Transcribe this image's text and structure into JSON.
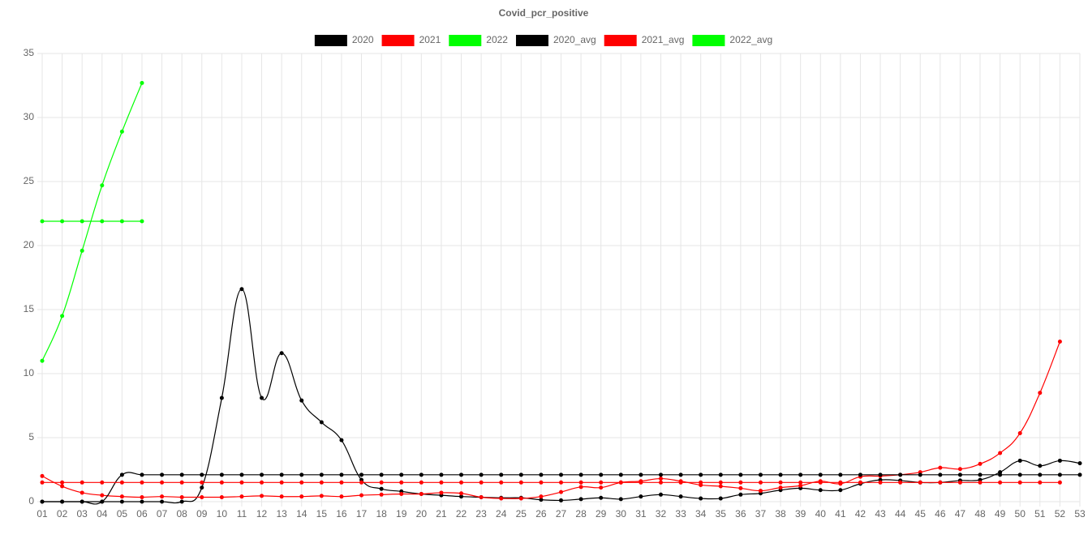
{
  "chart_data": {
    "type": "line",
    "title": "Covid_pcr_positive",
    "categories": [
      "01",
      "02",
      "03",
      "04",
      "05",
      "06",
      "07",
      "08",
      "09",
      "10",
      "11",
      "12",
      "13",
      "14",
      "15",
      "16",
      "17",
      "18",
      "19",
      "20",
      "21",
      "22",
      "23",
      "24",
      "25",
      "26",
      "27",
      "28",
      "29",
      "30",
      "31",
      "32",
      "33",
      "34",
      "35",
      "36",
      "37",
      "38",
      "39",
      "40",
      "41",
      "42",
      "43",
      "44",
      "45",
      "46",
      "47",
      "48",
      "49",
      "50",
      "51",
      "52",
      "53"
    ],
    "series": [
      {
        "name": "2020",
        "color": "#000000",
        "values": [
          0,
          0,
          0,
          0,
          0,
          0,
          0,
          0,
          1.1,
          8.1,
          16.6,
          8.1,
          11.6,
          7.9,
          6.2,
          4.8,
          1.7,
          1.0,
          0.8,
          0.6,
          0.5,
          0.4,
          0.35,
          0.3,
          0.3,
          0.15,
          0.1,
          0.2,
          0.3,
          0.2,
          0.4,
          0.55,
          0.4,
          0.25,
          0.25,
          0.55,
          0.65,
          0.9,
          1.05,
          0.9,
          0.9,
          1.4,
          1.7,
          1.65,
          1.5,
          1.5,
          1.65,
          1.7,
          2.3,
          3.2,
          2.8,
          3.2,
          3.0
        ]
      },
      {
        "name": "2021",
        "color": "#ff0000",
        "values": [
          2.0,
          1.2,
          0.7,
          0.5,
          0.4,
          0.35,
          0.4,
          0.35,
          0.35,
          0.35,
          0.4,
          0.45,
          0.4,
          0.4,
          0.45,
          0.4,
          0.5,
          0.55,
          0.6,
          0.6,
          0.7,
          0.65,
          0.35,
          0.25,
          0.25,
          0.4,
          0.75,
          1.15,
          1.1,
          1.5,
          1.6,
          1.8,
          1.6,
          1.3,
          1.2,
          1.05,
          0.85,
          1.1,
          1.25,
          1.6,
          1.4,
          1.95,
          2.0,
          2.1,
          2.3,
          2.65,
          2.55,
          2.95,
          3.8,
          5.35,
          8.5,
          12.5,
          null
        ]
      },
      {
        "name": "2022",
        "color": "#00ff00",
        "values": [
          11.0,
          14.5,
          19.6,
          24.7,
          28.9,
          32.7,
          null,
          null,
          null,
          null,
          null,
          null,
          null,
          null,
          null,
          null,
          null,
          null,
          null,
          null,
          null,
          null,
          null,
          null,
          null,
          null,
          null,
          null,
          null,
          null,
          null,
          null,
          null,
          null,
          null,
          null,
          null,
          null,
          null,
          null,
          null,
          null,
          null,
          null,
          null,
          null,
          null,
          null,
          null,
          null,
          null,
          null,
          null
        ]
      },
      {
        "name": "2020_avg",
        "color": "#000000",
        "values": [
          0,
          0,
          0,
          0,
          2.1,
          2.1,
          2.1,
          2.1,
          2.1,
          2.1,
          2.1,
          2.1,
          2.1,
          2.1,
          2.1,
          2.1,
          2.1,
          2.1,
          2.1,
          2.1,
          2.1,
          2.1,
          2.1,
          2.1,
          2.1,
          2.1,
          2.1,
          2.1,
          2.1,
          2.1,
          2.1,
          2.1,
          2.1,
          2.1,
          2.1,
          2.1,
          2.1,
          2.1,
          2.1,
          2.1,
          2.1,
          2.1,
          2.1,
          2.1,
          2.1,
          2.1,
          2.1,
          2.1,
          2.1,
          2.1,
          2.1,
          2.1,
          2.1
        ]
      },
      {
        "name": "2021_avg",
        "color": "#ff0000",
        "values": [
          1.5,
          1.5,
          1.5,
          1.5,
          1.5,
          1.5,
          1.5,
          1.5,
          1.5,
          1.5,
          1.5,
          1.5,
          1.5,
          1.5,
          1.5,
          1.5,
          1.5,
          1.5,
          1.5,
          1.5,
          1.5,
          1.5,
          1.5,
          1.5,
          1.5,
          1.5,
          1.5,
          1.5,
          1.5,
          1.5,
          1.5,
          1.5,
          1.5,
          1.5,
          1.5,
          1.5,
          1.5,
          1.5,
          1.5,
          1.5,
          1.5,
          1.5,
          1.5,
          1.5,
          1.5,
          1.5,
          1.5,
          1.5,
          1.5,
          1.5,
          1.5,
          1.5,
          null
        ]
      },
      {
        "name": "2022_avg",
        "color": "#00ff00",
        "values": [
          21.9,
          21.9,
          21.9,
          21.9,
          21.9,
          21.9,
          null,
          null,
          null,
          null,
          null,
          null,
          null,
          null,
          null,
          null,
          null,
          null,
          null,
          null,
          null,
          null,
          null,
          null,
          null,
          null,
          null,
          null,
          null,
          null,
          null,
          null,
          null,
          null,
          null,
          null,
          null,
          null,
          null,
          null,
          null,
          null,
          null,
          null,
          null,
          null,
          null,
          null,
          null,
          null,
          null,
          null,
          null
        ]
      }
    ],
    "ylim": [
      0,
      35
    ],
    "yticks": [
      0,
      5,
      10,
      15,
      20,
      25,
      30,
      35
    ],
    "grid": true
  }
}
